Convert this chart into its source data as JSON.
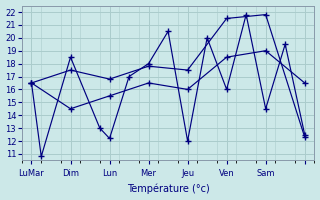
{
  "xlabel": "Température (°c)",
  "background_color": "#cce8e8",
  "grid_color": "#aacccc",
  "line_color": "#000080",
  "ylim": [
    10.5,
    22.5
  ],
  "yticks": [
    11,
    12,
    13,
    14,
    15,
    16,
    17,
    18,
    19,
    20,
    21,
    22
  ],
  "x_major_positions": [
    0,
    4,
    8,
    12,
    16,
    20,
    24,
    28
  ],
  "x_major_labels": [
    "LuMar",
    "Dim",
    "Lun",
    "Mer",
    "Jeu",
    "Ven",
    "Sam",
    ""
  ],
  "xlim": [
    -1,
    29
  ],
  "series": [
    {
      "x": [
        0,
        1,
        4,
        7,
        8,
        10,
        12,
        14,
        16,
        18,
        20,
        22,
        24,
        26,
        28
      ],
      "y": [
        16.5,
        10.8,
        18.5,
        13.0,
        12.2,
        17.0,
        18.0,
        20.5,
        12.0,
        20.0,
        16.0,
        21.8,
        14.5,
        19.5,
        12.5
      ]
    },
    {
      "x": [
        0,
        4,
        8,
        12,
        16,
        20,
        24,
        28
      ],
      "y": [
        16.5,
        17.5,
        16.8,
        17.8,
        17.5,
        21.5,
        21.8,
        12.3
      ]
    },
    {
      "x": [
        0,
        4,
        8,
        12,
        16,
        20,
        24,
        28
      ],
      "y": [
        16.5,
        14.5,
        15.5,
        16.5,
        16.0,
        18.5,
        19.0,
        16.5
      ]
    }
  ]
}
